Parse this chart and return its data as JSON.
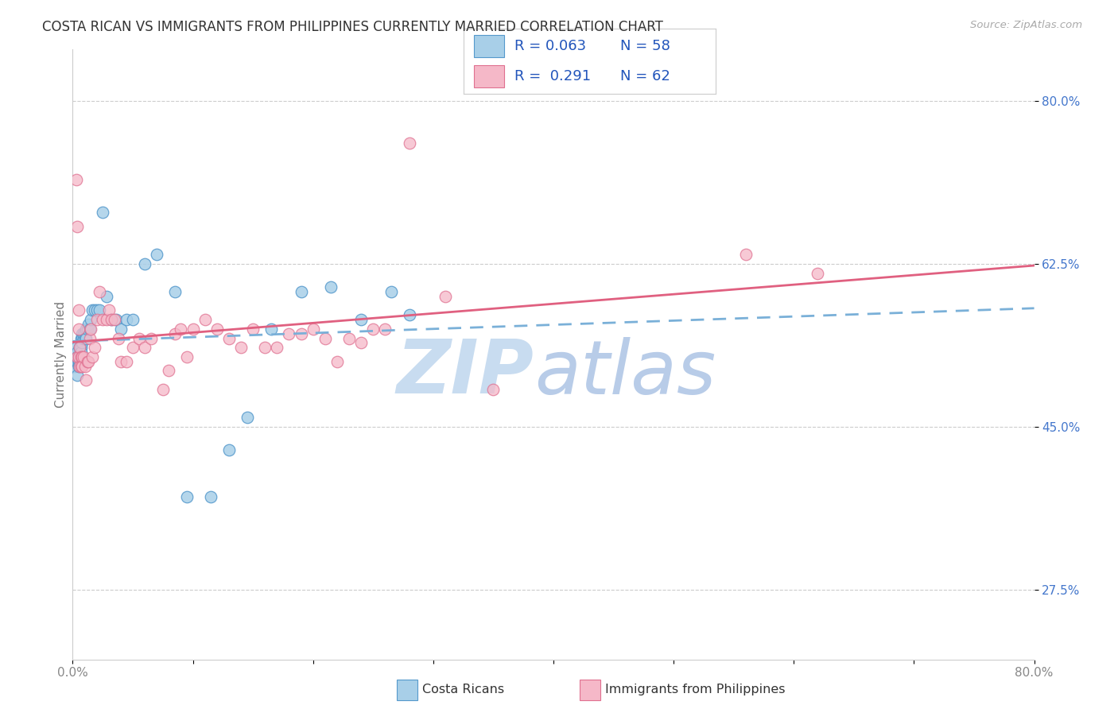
{
  "title": "COSTA RICAN VS IMMIGRANTS FROM PHILIPPINES CURRENTLY MARRIED CORRELATION CHART",
  "source": "Source: ZipAtlas.com",
  "ylabel": "Currently Married",
  "xlim": [
    0.0,
    0.8
  ],
  "ylim": [
    0.2,
    0.855
  ],
  "yticks": [
    0.275,
    0.45,
    0.625,
    0.8
  ],
  "ytick_labels": [
    "27.5%",
    "45.0%",
    "62.5%",
    "80.0%"
  ],
  "xtick_positions": [
    0.0,
    0.1,
    0.2,
    0.3,
    0.4,
    0.5,
    0.6,
    0.7,
    0.8
  ],
  "xtick_labels": [
    "0.0%",
    "",
    "",
    "",
    "",
    "",
    "",
    "",
    "80.0%"
  ],
  "color_blue_fill": "#a8cfe8",
  "color_blue_edge": "#5599cc",
  "color_pink_fill": "#f5b8c8",
  "color_pink_edge": "#e07090",
  "color_blue_trend": "#7ab0d8",
  "color_pink_trend": "#e06080",
  "color_ytick": "#4477cc",
  "color_xtick": "#888888",
  "color_title": "#333333",
  "color_source": "#aaaaaa",
  "color_legend_text": "#2255bb",
  "color_grid": "#cccccc",
  "color_watermark_zip": "#c8dcf0",
  "color_watermark_atlas": "#b8cce8",
  "legend_r1": "0.063",
  "legend_n1": "58",
  "legend_r2": "0.291",
  "legend_n2": "62",
  "blue_x": [
    0.002,
    0.003,
    0.003,
    0.003,
    0.004,
    0.004,
    0.004,
    0.004,
    0.005,
    0.005,
    0.005,
    0.005,
    0.005,
    0.006,
    0.006,
    0.006,
    0.006,
    0.007,
    0.007,
    0.007,
    0.007,
    0.008,
    0.008,
    0.008,
    0.009,
    0.009,
    0.01,
    0.01,
    0.011,
    0.011,
    0.012,
    0.013,
    0.014,
    0.015,
    0.016,
    0.018,
    0.02,
    0.022,
    0.025,
    0.028,
    0.032,
    0.036,
    0.04,
    0.045,
    0.05,
    0.06,
    0.07,
    0.085,
    0.095,
    0.115,
    0.13,
    0.145,
    0.165,
    0.19,
    0.215,
    0.24,
    0.265,
    0.28
  ],
  "blue_y": [
    0.515,
    0.525,
    0.535,
    0.52,
    0.52,
    0.53,
    0.525,
    0.505,
    0.525,
    0.52,
    0.515,
    0.52,
    0.525,
    0.535,
    0.525,
    0.52,
    0.525,
    0.545,
    0.535,
    0.53,
    0.525,
    0.55,
    0.545,
    0.54,
    0.545,
    0.55,
    0.55,
    0.545,
    0.555,
    0.545,
    0.555,
    0.56,
    0.555,
    0.565,
    0.575,
    0.575,
    0.575,
    0.575,
    0.68,
    0.59,
    0.565,
    0.565,
    0.555,
    0.565,
    0.565,
    0.625,
    0.635,
    0.595,
    0.375,
    0.375,
    0.425,
    0.46,
    0.555,
    0.595,
    0.6,
    0.565,
    0.595,
    0.57
  ],
  "pink_x": [
    0.003,
    0.004,
    0.004,
    0.005,
    0.005,
    0.005,
    0.006,
    0.006,
    0.007,
    0.007,
    0.008,
    0.008,
    0.009,
    0.01,
    0.011,
    0.012,
    0.013,
    0.014,
    0.015,
    0.016,
    0.018,
    0.02,
    0.022,
    0.025,
    0.028,
    0.03,
    0.032,
    0.035,
    0.038,
    0.04,
    0.045,
    0.05,
    0.055,
    0.06,
    0.065,
    0.075,
    0.08,
    0.085,
    0.09,
    0.095,
    0.1,
    0.11,
    0.12,
    0.13,
    0.14,
    0.15,
    0.16,
    0.17,
    0.18,
    0.19,
    0.2,
    0.21,
    0.22,
    0.23,
    0.24,
    0.25,
    0.26,
    0.28,
    0.31,
    0.35,
    0.56,
    0.62
  ],
  "pink_y": [
    0.715,
    0.665,
    0.525,
    0.575,
    0.555,
    0.525,
    0.535,
    0.515,
    0.525,
    0.515,
    0.525,
    0.515,
    0.525,
    0.515,
    0.5,
    0.52,
    0.52,
    0.545,
    0.555,
    0.525,
    0.535,
    0.565,
    0.595,
    0.565,
    0.565,
    0.575,
    0.565,
    0.565,
    0.545,
    0.52,
    0.52,
    0.535,
    0.545,
    0.535,
    0.545,
    0.49,
    0.51,
    0.55,
    0.555,
    0.525,
    0.555,
    0.565,
    0.555,
    0.545,
    0.535,
    0.555,
    0.535,
    0.535,
    0.55,
    0.55,
    0.555,
    0.545,
    0.52,
    0.545,
    0.54,
    0.555,
    0.555,
    0.755,
    0.59,
    0.49,
    0.635,
    0.615
  ]
}
